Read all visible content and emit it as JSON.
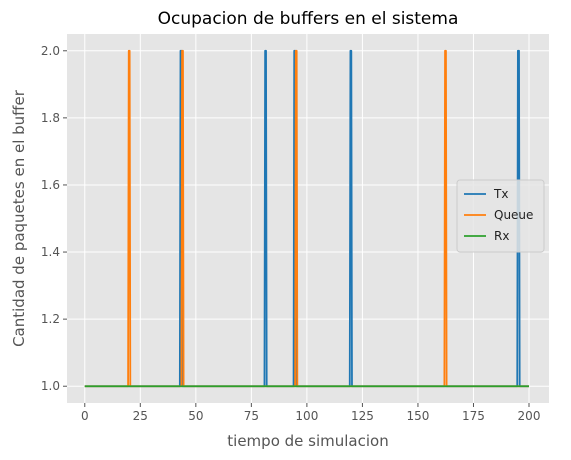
{
  "chart_data": {
    "type": "line",
    "title": "Ocupacion de buffers en el sistema",
    "xlabel": "tiempo de simulacion",
    "ylabel": "Cantidad de paquetes en el buffer",
    "xlim": [
      -8,
      209
    ],
    "ylim": [
      0.95,
      2.05
    ],
    "xticks": [
      0,
      25,
      50,
      75,
      100,
      125,
      150,
      175,
      200
    ],
    "yticks": [
      1.0,
      1.2,
      1.4,
      1.6,
      1.8,
      2.0
    ],
    "ytick_labels": [
      "1.0",
      "1.2",
      "1.4",
      "1.6",
      "1.8",
      "2.0"
    ],
    "grid": true,
    "legend_position": "center-right",
    "series": [
      {
        "name": "Tx",
        "color": "#1f77b4",
        "x": [
          0,
          42.8,
          43.1,
          43.6,
          43.9,
          80.9,
          81.2,
          81.6,
          81.9,
          94.0,
          94.3,
          94.8,
          95.1,
          119.3,
          119.6,
          120.0,
          120.3,
          194.7,
          195.0,
          195.5,
          195.8,
          200
        ],
        "y": [
          1,
          1,
          2,
          2,
          1,
          1,
          2,
          2,
          1,
          1,
          2,
          2,
          1,
          1,
          2,
          2,
          1,
          1,
          2,
          2,
          1,
          1
        ]
      },
      {
        "name": "Queue",
        "color": "#ff7f0e",
        "x": [
          0,
          19.5,
          19.8,
          20.2,
          20.5,
          43.5,
          43.8,
          44.2,
          44.5,
          94.7,
          95.0,
          95.4,
          95.7,
          161.9,
          162.2,
          162.6,
          162.9,
          200
        ],
        "y": [
          1,
          1,
          2,
          2,
          1,
          1,
          2,
          2,
          1,
          1,
          2,
          2,
          1,
          1,
          2,
          2,
          1,
          1
        ]
      },
      {
        "name": "Rx",
        "color": "#2ca02c",
        "x": [
          0,
          200
        ],
        "y": [
          1,
          1
        ]
      }
    ]
  }
}
